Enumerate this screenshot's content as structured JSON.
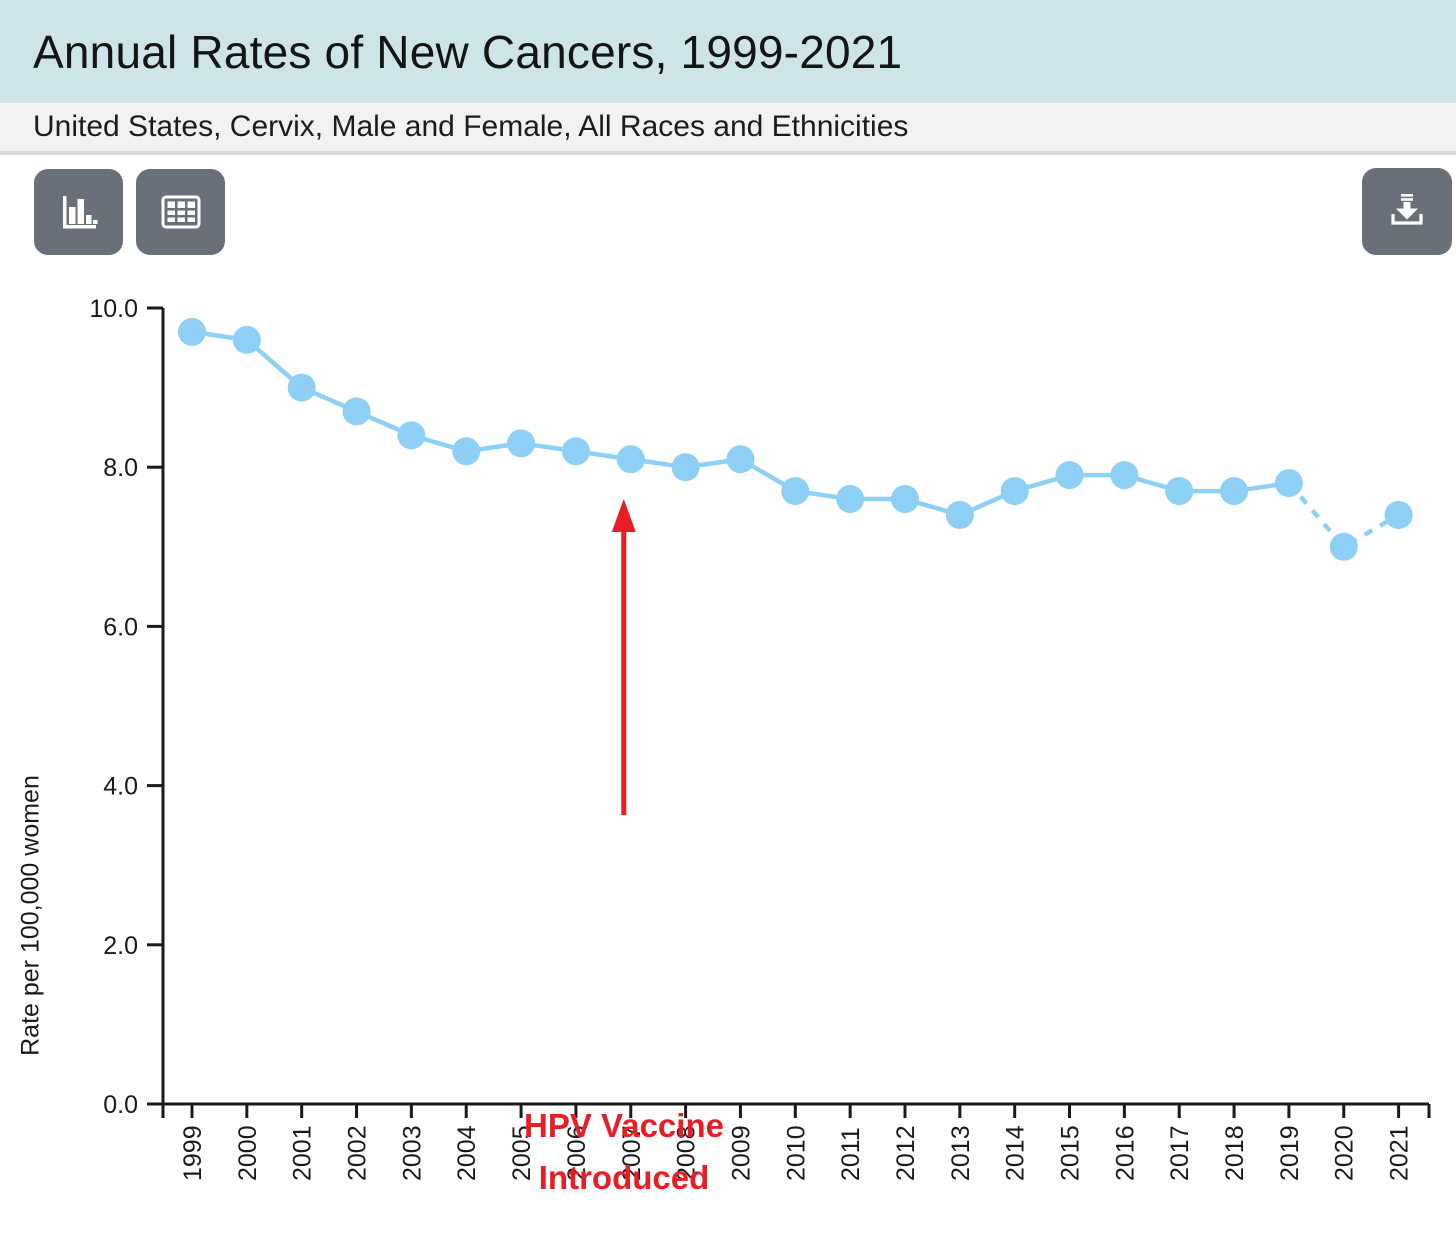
{
  "header": {
    "title": "Annual Rates of New Cancers, 1999-2021",
    "subtitle": "United States, Cervix, Male and Female, All Races and Ethnicities"
  },
  "toolbar": {
    "buttons": [
      {
        "name": "bar-chart-view",
        "icon": "bar-chart-icon"
      },
      {
        "name": "table-view",
        "icon": "table-icon"
      },
      {
        "name": "download",
        "icon": "download-icon"
      }
    ]
  },
  "colors": {
    "header_bg": "#cde4e9",
    "subtitle_bg": "#f2f2f2",
    "subtitle_border": "#d9d9d9",
    "button_bg": "#697079",
    "series_blue": "#8ECFF5",
    "annotation_red": "#E81E25",
    "ink": "#1a1a1a"
  },
  "chart_data": {
    "type": "line",
    "title": "Annual Rates of New Cancers, 1999-2021",
    "subtitle": "United States, Cervix, Male and Female, All Races and Ethnicities",
    "x": [
      "1999",
      "2000",
      "2001",
      "2002",
      "2003",
      "2004",
      "2005",
      "2006",
      "2007",
      "2008",
      "2009",
      "2010",
      "2011",
      "2012",
      "2013",
      "2014",
      "2015",
      "2016",
      "2017",
      "2018",
      "2019",
      "2020",
      "2021"
    ],
    "series": [
      {
        "name": "Rate per 100,000 women",
        "values": [
          9.7,
          9.6,
          9.0,
          8.7,
          8.4,
          8.2,
          8.3,
          8.2,
          8.1,
          8.0,
          8.1,
          7.7,
          7.6,
          7.6,
          7.4,
          7.7,
          7.9,
          7.9,
          7.7,
          7.7,
          7.8,
          7.0,
          7.4
        ]
      }
    ],
    "dashed_from_index": 20,
    "line_color": "#8ECFF5",
    "marker": "circle",
    "xlabel": "",
    "ylabel": "Rate per 100,000 women",
    "ylim": [
      0,
      10
    ],
    "y_ticks": [
      "0.0",
      "2.0",
      "4.0",
      "6.0",
      "8.0",
      "10.0"
    ],
    "grid": false,
    "legend": null,
    "annotation": {
      "lines": [
        "HPV Vaccine",
        "Introduced"
      ],
      "arrow_year": "2007",
      "color": "#E81E25"
    }
  }
}
